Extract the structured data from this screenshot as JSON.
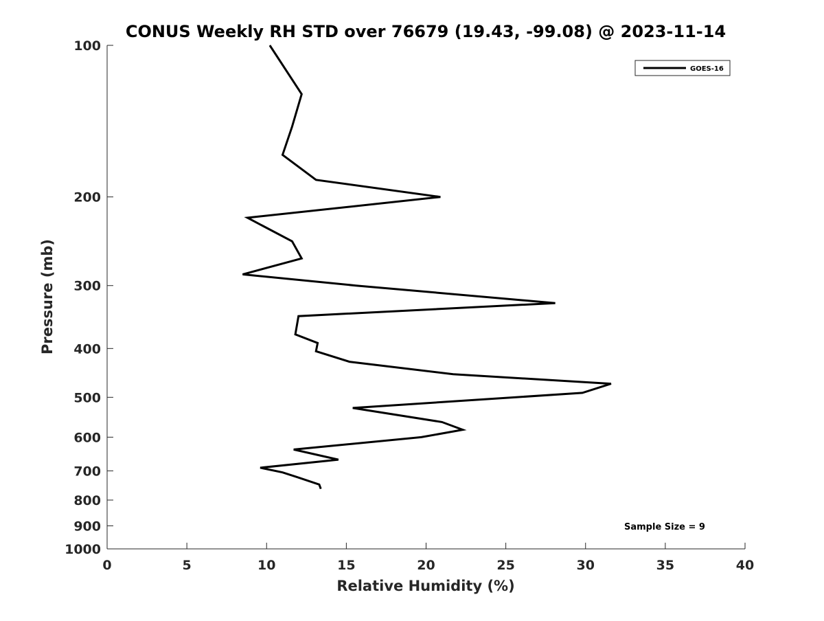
{
  "chart_data": {
    "type": "line",
    "title": "CONUS Weekly RH STD over 76679 (19.43, -99.08) @ 2023-11-14",
    "xlabel": "Relative Humidity (%)",
    "ylabel": "Pressure (mb)",
    "xlim": [
      0,
      40
    ],
    "ylim": [
      100,
      1000
    ],
    "y_scale": "log",
    "y_reversed": true,
    "x_ticks": [
      0,
      5,
      10,
      15,
      20,
      25,
      30,
      35,
      40
    ],
    "x_tick_labels": [
      "0",
      "5",
      "10",
      "15",
      "20",
      "25",
      "30",
      "35",
      "40"
    ],
    "y_ticks": [
      100,
      200,
      300,
      400,
      500,
      600,
      700,
      800,
      900,
      1000
    ],
    "y_tick_labels": [
      "100",
      "200",
      "300",
      "400",
      "500",
      "600",
      "700",
      "800",
      "900",
      "1000"
    ],
    "grid": false,
    "legend_position": "top-right",
    "annotation": "Sample Size = 9",
    "series": [
      {
        "name": "GOES-16",
        "color": "#000000",
        "x": [
          10.2,
          12.2,
          11.6,
          11.0,
          13.1,
          20.9,
          8.8,
          11.6,
          12.2,
          8.5,
          15.6,
          28.1,
          12.0,
          11.8,
          13.2,
          13.1,
          15.2,
          21.7,
          31.6,
          29.8,
          15.4,
          21.0,
          22.3,
          19.7,
          11.7,
          14.5,
          9.6,
          11.0,
          11.9,
          13.3,
          13.4
        ],
        "y": [
          100,
          125,
          145,
          165,
          185,
          200,
          220,
          245,
          265,
          285,
          300,
          325,
          345,
          375,
          390,
          405,
          425,
          450,
          470,
          490,
          525,
          560,
          580,
          600,
          635,
          665,
          690,
          705,
          720,
          745,
          760
        ]
      }
    ]
  }
}
